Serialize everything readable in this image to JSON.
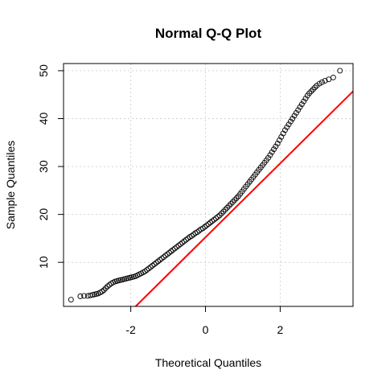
{
  "chart_data": {
    "type": "scatter",
    "title": "Normal Q-Q Plot",
    "xlabel": "Theoretical Quantiles",
    "ylabel": "Sample Quantiles",
    "xlim": [
      -3.8,
      3.95
    ],
    "ylim": [
      0.8,
      51.5
    ],
    "x_ticks": [
      -2,
      0,
      2
    ],
    "x_tick_labels": [
      "-2",
      "0",
      "2"
    ],
    "y_ticks": [
      10,
      20,
      30,
      40,
      50
    ],
    "y_tick_labels": [
      "10",
      "20",
      "30",
      "40",
      "50"
    ],
    "grid": true,
    "point_color": "#000000",
    "line_color": "#ff0000",
    "series": [
      {
        "x": [
          -3.6,
          -3.35,
          -3.25,
          -3.15,
          -3.08,
          -3.02,
          -2.97,
          -2.92,
          -2.87,
          -2.82,
          -2.77,
          -2.72,
          -2.67,
          -2.62,
          -2.57,
          -2.52,
          -2.47,
          -2.42,
          -2.37,
          -2.32,
          -2.27,
          -2.22,
          -2.17,
          -2.12,
          -2.07,
          -2.02,
          -1.97,
          -1.92,
          -1.87,
          -1.82,
          -1.77,
          -1.72,
          -1.67,
          -1.62,
          -1.57,
          -1.52,
          -1.47,
          -1.42,
          -1.37,
          -1.32,
          -1.27,
          -1.22,
          -1.17,
          -1.12,
          -1.07,
          -1.02,
          -0.97,
          -0.92,
          -0.87,
          -0.82,
          -0.77,
          -0.72,
          -0.67,
          -0.62,
          -0.57,
          -0.52,
          -0.47,
          -0.42,
          -0.37,
          -0.32,
          -0.27,
          -0.22,
          -0.17,
          -0.12,
          -0.07,
          -0.02,
          0.03,
          0.08,
          0.13,
          0.18,
          0.23,
          0.28,
          0.33,
          0.38,
          0.43,
          0.48,
          0.53,
          0.58,
          0.63,
          0.68,
          0.73,
          0.78,
          0.83,
          0.88,
          0.93,
          0.98,
          1.03,
          1.08,
          1.13,
          1.18,
          1.23,
          1.28,
          1.33,
          1.38,
          1.43,
          1.48,
          1.53,
          1.58,
          1.63,
          1.68,
          1.73,
          1.78,
          1.83,
          1.88,
          1.93,
          1.98,
          2.03,
          2.08,
          2.13,
          2.18,
          2.23,
          2.28,
          2.33,
          2.38,
          2.43,
          2.48,
          2.53,
          2.58,
          2.63,
          2.68,
          2.73,
          2.78,
          2.83,
          2.88,
          2.93,
          2.98,
          3.05,
          3.12,
          3.2,
          3.3,
          3.42,
          3.6
        ],
        "y": [
          2.2,
          2.9,
          3.0,
          3.0,
          3.1,
          3.2,
          3.3,
          3.4,
          3.5,
          3.7,
          3.9,
          4.2,
          4.6,
          5.0,
          5.3,
          5.6,
          5.8,
          6.0,
          6.1,
          6.2,
          6.3,
          6.4,
          6.5,
          6.6,
          6.7,
          6.8,
          6.9,
          7.0,
          7.1,
          7.3,
          7.5,
          7.7,
          7.9,
          8.1,
          8.4,
          8.7,
          9.0,
          9.3,
          9.6,
          9.9,
          10.2,
          10.5,
          10.8,
          11.1,
          11.4,
          11.7,
          12.0,
          12.3,
          12.6,
          12.9,
          13.2,
          13.5,
          13.8,
          14.1,
          14.4,
          14.7,
          15.0,
          15.3,
          15.5,
          15.8,
          16.1,
          16.3,
          16.6,
          16.9,
          17.1,
          17.4,
          17.7,
          18.0,
          18.3,
          18.6,
          18.9,
          19.2,
          19.5,
          19.8,
          20.2,
          20.6,
          21.0,
          21.4,
          21.8,
          22.2,
          22.6,
          23.0,
          23.4,
          23.8,
          24.3,
          24.8,
          25.3,
          25.8,
          26.3,
          26.8,
          27.3,
          27.8,
          28.3,
          28.8,
          29.3,
          29.8,
          30.3,
          30.8,
          31.3,
          31.8,
          32.4,
          33.0,
          33.6,
          34.2,
          34.8,
          35.5,
          36.2,
          36.9,
          37.6,
          38.2,
          38.8,
          39.4,
          40.0,
          40.6,
          41.2,
          41.8,
          42.4,
          43.0,
          43.6,
          44.2,
          44.8,
          45.3,
          45.7,
          46.1,
          46.5,
          46.9,
          47.3,
          47.6,
          47.9,
          48.2,
          48.6,
          50.0
        ]
      }
    ],
    "reference_line": {
      "x": [
        -1.87,
        3.95
      ],
      "y": [
        0.8,
        45.7
      ]
    }
  }
}
